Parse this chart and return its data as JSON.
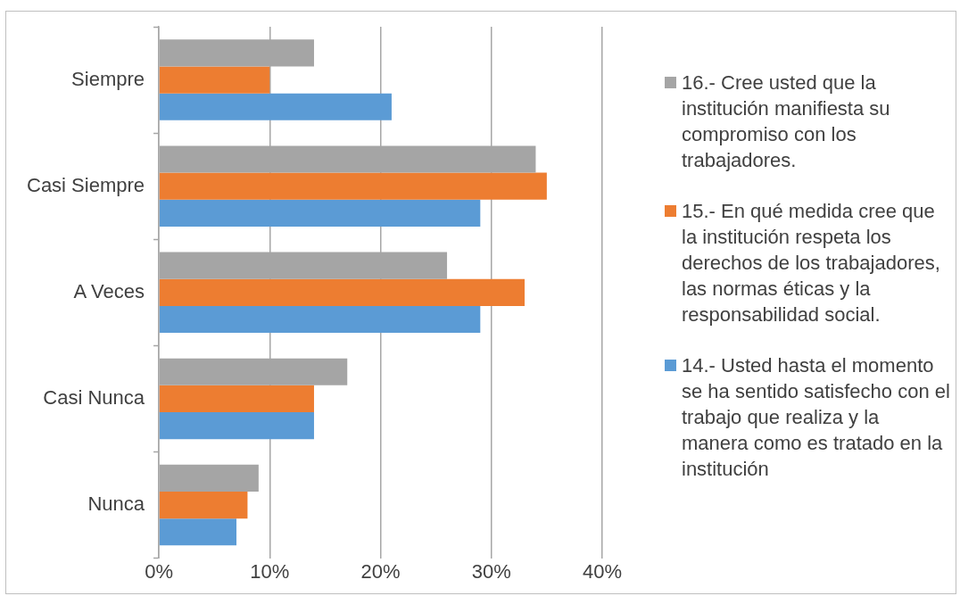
{
  "chart_data": {
    "type": "bar",
    "orientation": "horizontal",
    "categories": [
      "Siempre",
      "Casi Siempre",
      "A Veces",
      "Casi Nunca",
      "Nunca"
    ],
    "series": [
      {
        "name": "16.- Cree usted que la institución manifiesta su compromiso con los trabajadores.",
        "color": "#a5a5a5",
        "values": [
          14,
          34,
          26,
          17,
          9
        ]
      },
      {
        "name": "15.- En qué medida cree que la institución respeta los derechos de los trabajadores, las normas éticas y la responsabilidad social.",
        "color": "#ed7d31",
        "values": [
          10,
          35,
          33,
          14,
          8
        ]
      },
      {
        "name": "14.- Usted hasta el momento se ha sentido satisfecho con el trabajo que realiza y la manera como es tratado en la institución",
        "color": "#5b9bd5",
        "values": [
          21,
          29,
          29,
          14,
          7
        ]
      }
    ],
    "xlim": [
      0,
      40
    ],
    "xticks": [
      {
        "value": 0,
        "label": "0%"
      },
      {
        "value": 10,
        "label": "10%"
      },
      {
        "value": 20,
        "label": "20%"
      },
      {
        "value": 30,
        "label": "30%"
      },
      {
        "value": 40,
        "label": "40%"
      }
    ],
    "grid": "x",
    "legend": "right"
  }
}
